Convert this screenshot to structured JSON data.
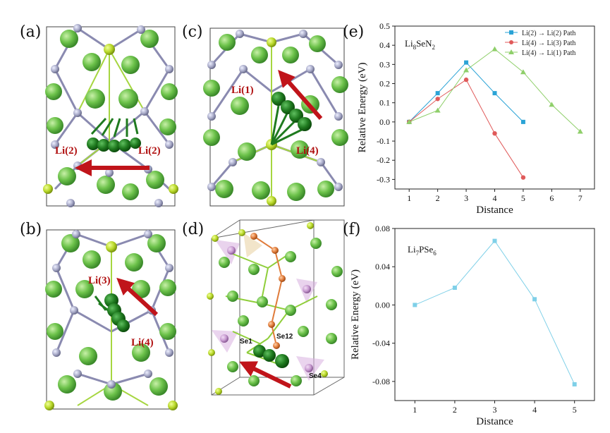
{
  "panels": {
    "a": {
      "label": "(a)",
      "atoms": [
        "Li(2)",
        "Li(2)"
      ]
    },
    "b": {
      "label": "(b)",
      "atoms": [
        "Li(3)",
        "Li(4)"
      ]
    },
    "c": {
      "label": "(c)",
      "atoms": [
        "Li(1)",
        "Li(4)"
      ]
    },
    "d": {
      "label": "(d)",
      "atoms": [
        "Se1",
        "Se12",
        "Se4"
      ]
    },
    "e": {
      "label": "(e)"
    },
    "f": {
      "label": "(f)"
    }
  },
  "colors": {
    "li": "#6cc24a",
    "li_dark": "#1f7a1f",
    "n": "#a8aac8",
    "se": "#b8d829",
    "arrow": "#c0141a",
    "path_blue": "#2aa3d6",
    "path_red": "#e05a5a",
    "path_green": "#8fcf6a"
  },
  "chart_data": [
    {
      "type": "line",
      "panel": "(e)",
      "formula_main": "Li",
      "formula_parts": [
        "8",
        "SeN",
        "2"
      ],
      "xlabel": "Distance",
      "ylabel": "Relative Energy (eV)",
      "xlim": [
        0.5,
        7.5
      ],
      "ylim": [
        -0.35,
        0.5
      ],
      "xticks": [
        1,
        2,
        3,
        4,
        5,
        6,
        7
      ],
      "yticks": [
        -0.3,
        -0.2,
        -0.1,
        0.0,
        0.1,
        0.2,
        0.3,
        0.4,
        0.5
      ],
      "ytick_labels": [
        "-0.3",
        "-0.2",
        "-0.1",
        "0.0",
        "0.1",
        "0.2",
        "0.3",
        "0.4",
        "0.5"
      ],
      "legend_position": "top-right",
      "series": [
        {
          "name": "Li(2) → Li(2) Path",
          "marker": "square",
          "color": "#2aa3d6",
          "x": [
            1,
            2,
            3,
            4,
            5
          ],
          "y": [
            0.0,
            0.15,
            0.31,
            0.15,
            0.0
          ]
        },
        {
          "name": "Li(4) → Li(3) Path",
          "marker": "circle",
          "color": "#e05a5a",
          "x": [
            1,
            2,
            3,
            4,
            5
          ],
          "y": [
            0.0,
            0.12,
            0.22,
            -0.06,
            -0.29
          ]
        },
        {
          "name": "Li(4) → Li(1) Path",
          "marker": "triangle",
          "color": "#8fcf6a",
          "x": [
            1,
            2,
            3,
            4,
            5,
            6,
            7
          ],
          "y": [
            0.0,
            0.06,
            0.27,
            0.38,
            0.26,
            0.09,
            -0.05
          ]
        }
      ]
    },
    {
      "type": "line",
      "panel": "(f)",
      "formula_main": "Li",
      "formula_parts": [
        "7",
        "PSe",
        "6"
      ],
      "xlabel": "Distance",
      "ylabel": "Relative Energy (eV)",
      "xlim": [
        0.5,
        5.5
      ],
      "ylim": [
        -0.1,
        0.08
      ],
      "xticks": [
        1,
        2,
        3,
        4,
        5
      ],
      "yticks": [
        -0.08,
        -0.04,
        0.0,
        0.04,
        0.08
      ],
      "ytick_labels": [
        "-0.08",
        "-0.04",
        "0.00",
        "0.04",
        "0.08"
      ],
      "series": [
        {
          "name": "Li7PSe6",
          "marker": "square",
          "color": "#7fd0e8",
          "x": [
            1,
            2,
            3,
            4,
            5
          ],
          "y": [
            0.0,
            0.018,
            0.067,
            0.006,
            -0.083
          ]
        }
      ]
    }
  ]
}
